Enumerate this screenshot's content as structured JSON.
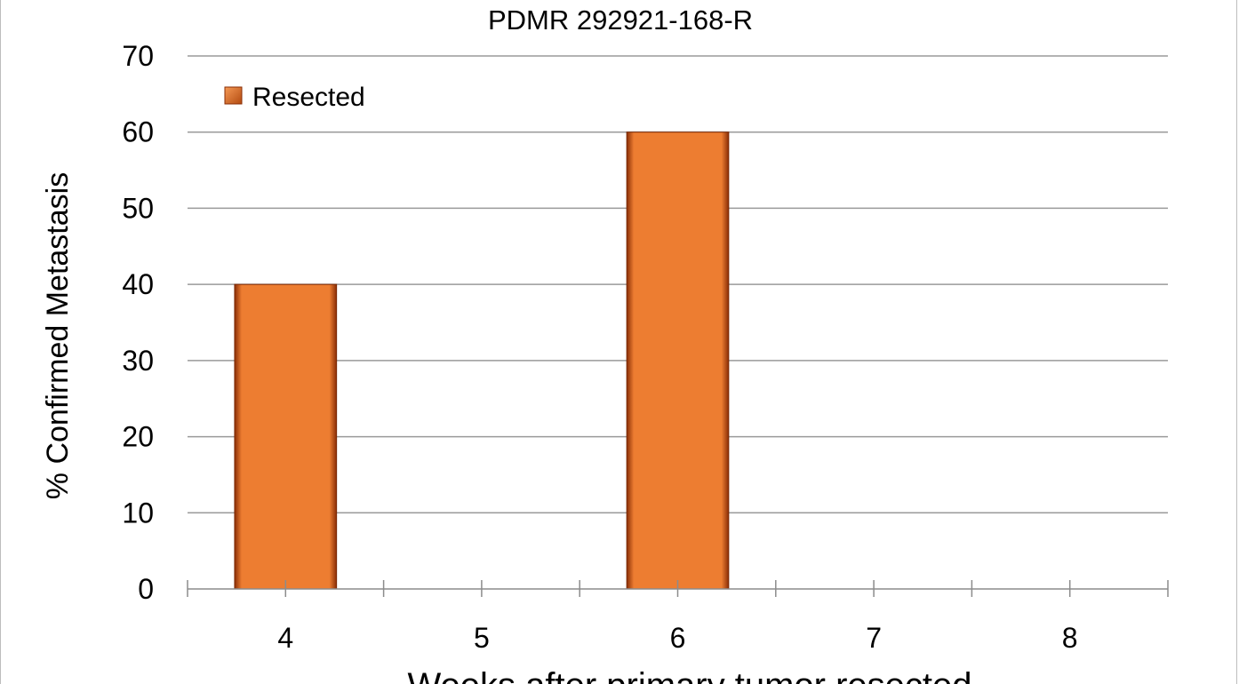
{
  "chart_data": {
    "type": "bar",
    "title": "PDMR 292921-168-R",
    "xlabel": "Weeks after primary tumor resected",
    "ylabel": "% Confirmed Metastasis",
    "categories": [
      "4",
      "5",
      "6",
      "7",
      "8"
    ],
    "series": [
      {
        "name": "Resected",
        "values": [
          40,
          0,
          60,
          0,
          0
        ],
        "color": "#ED7D31"
      }
    ],
    "ylim": [
      0,
      70
    ],
    "yticks": [
      0,
      10,
      20,
      30,
      40,
      50,
      60,
      70
    ],
    "grid": true,
    "legend": "top-left"
  }
}
